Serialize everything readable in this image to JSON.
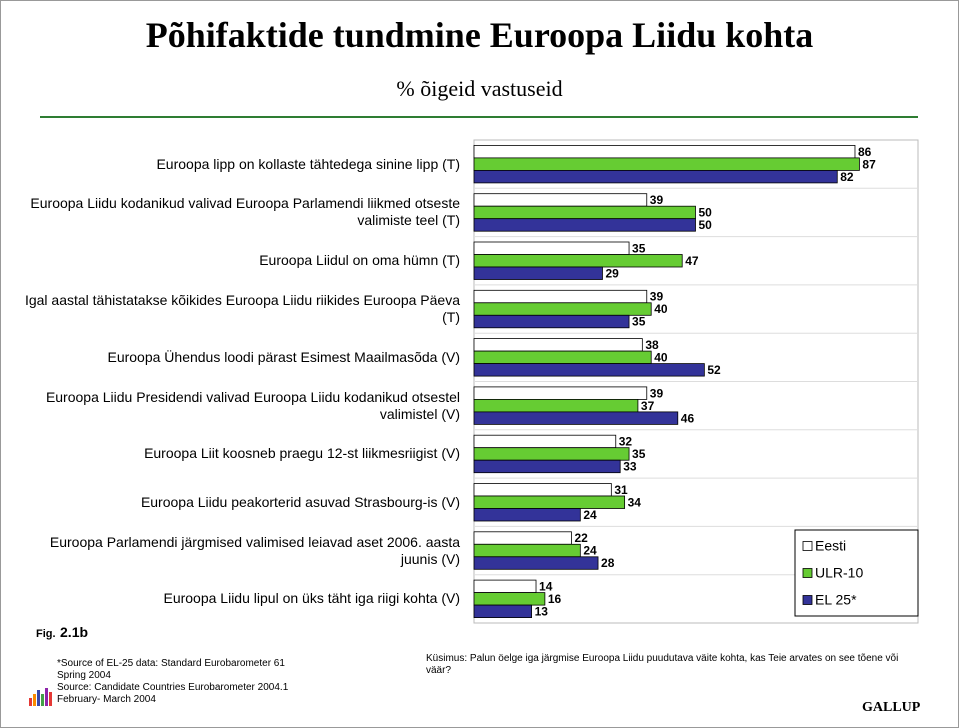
{
  "chart_data": {
    "type": "bar",
    "orientation": "horizontal",
    "title": "Põhifaktide tundmine Euroopa Liidu kohta",
    "subtitle": "% õigeid vastuseid",
    "categories": [
      "Euroopa lipp on kollaste tähtedega sinine lipp (T)",
      "Euroopa Liidu kodanikud valivad Euroopa Parlamendi liikmed otseste valimiste teel (T)",
      "Euroopa Liidul on oma hümn (T)",
      "Igal aastal tähistatakse kõikides Euroopa Liidu riikides Euroopa Päeva (T)",
      "Euroopa Ühendus loodi pärast Esimest Maailmasõda (V)",
      "Euroopa Liidu Presidendi valivad Euroopa Liidu kodanikud otsestel valimistel (V)",
      "Euroopa Liit koosneb praegu 12-st liikmesriigist (V)",
      "Euroopa Liidu peakorterid asuvad Strasbourg-is (V)",
      "Euroopa Parlamendi järgmised valimised leiavad aset 2006. aasta juunis (V)",
      "Euroopa Liidu lipul on üks täht iga riigi kohta (V)"
    ],
    "series": [
      {
        "name": "Eesti",
        "color": "#ffffff",
        "values": [
          86,
          39,
          35,
          39,
          38,
          39,
          32,
          31,
          22,
          14
        ]
      },
      {
        "name": "ULR-10",
        "color": "#66cc33",
        "values": [
          87,
          50,
          47,
          40,
          40,
          37,
          35,
          34,
          24,
          16
        ]
      },
      {
        "name": "EL 25*",
        "color": "#333399",
        "values": [
          82,
          50,
          29,
          35,
          52,
          46,
          33,
          24,
          28,
          13
        ]
      }
    ],
    "legend": "lower right"
  },
  "figure": {
    "prefix": "Fig.",
    "number": "2.1b"
  },
  "sources": [
    "*Source of EL-25 data: Standard Eurobarometer 61",
    "Spring  2004",
    "Source: Candidate Countries Eurobarometer 2004.1",
    "February- March  2004"
  ],
  "question": "Küsimus: Palun öelge iga järgmise Euroopa Liidu puudutava väite kohta, kas Teie arvates on see tõene või väär?",
  "brand": "GALLUP"
}
